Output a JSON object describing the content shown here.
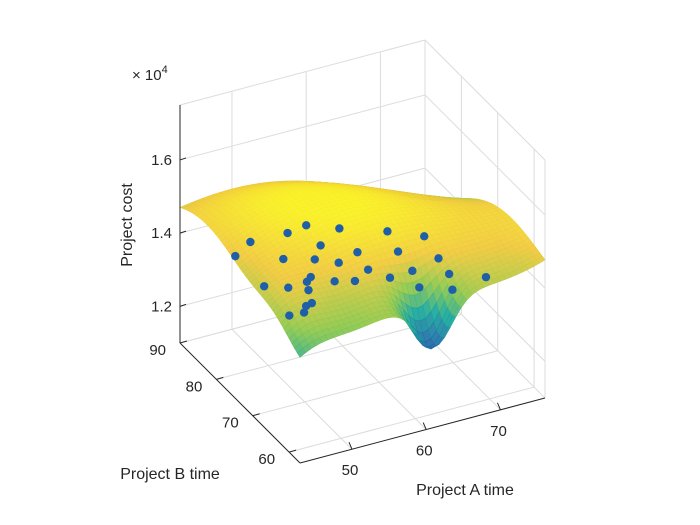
{
  "chart_data": {
    "type": "surface3d",
    "title": "",
    "xlabel": "Project A time",
    "ylabel": "Project B time",
    "zlabel": "Project cost",
    "z_exponent_label": "× 10",
    "z_exponent_power": "4",
    "x_ticks": [
      "50",
      "60",
      "70"
    ],
    "y_ticks": [
      "60",
      "70",
      "80",
      "90"
    ],
    "z_ticks": [
      "1.2",
      "1.4",
      "1.6"
    ],
    "x_tick_values": [
      50,
      60,
      70
    ],
    "y_tick_values": [
      60,
      70,
      80,
      90
    ],
    "z_tick_values": [
      12000,
      14000,
      16000
    ],
    "xlim": [
      43,
      76
    ],
    "ylim": [
      57,
      90
    ],
    "zlim": [
      11000,
      17500
    ],
    "grid": true,
    "colormap": [
      "#3a1f8f",
      "#1f6ea8",
      "#19a79b",
      "#8fc84a",
      "#f0c93a",
      "#f9f020"
    ],
    "scatter_color": "#1f5fa8",
    "points": [
      {
        "x": 44.5,
        "y": 63.0,
        "z": 14350
      },
      {
        "x": 46.0,
        "y": 62.0,
        "z": 14450
      },
      {
        "x": 47.5,
        "y": 64.5,
        "z": 14300
      },
      {
        "x": 49.0,
        "y": 66.0,
        "z": 14150
      },
      {
        "x": 46.5,
        "y": 74.0,
        "z": 13950
      },
      {
        "x": 49.5,
        "y": 73.5,
        "z": 13800
      },
      {
        "x": 51.0,
        "y": 71.0,
        "z": 13900
      },
      {
        "x": 52.5,
        "y": 74.5,
        "z": 13700
      },
      {
        "x": 54.0,
        "y": 76.5,
        "z": 13550
      },
      {
        "x": 55.5,
        "y": 73.0,
        "z": 13700
      },
      {
        "x": 56.5,
        "y": 80.5,
        "z": 13500
      },
      {
        "x": 57.5,
        "y": 71.5,
        "z": 13750
      },
      {
        "x": 58.5,
        "y": 78.0,
        "z": 13550
      },
      {
        "x": 59.0,
        "y": 84.0,
        "z": 13400
      },
      {
        "x": 60.5,
        "y": 74.0,
        "z": 13650
      },
      {
        "x": 61.0,
        "y": 69.0,
        "z": 13900
      },
      {
        "x": 62.0,
        "y": 80.0,
        "z": 13450
      },
      {
        "x": 62.5,
        "y": 64.0,
        "z": 14050
      },
      {
        "x": 63.0,
        "y": 87.0,
        "z": 13350
      },
      {
        "x": 64.5,
        "y": 70.0,
        "z": 13800
      },
      {
        "x": 65.0,
        "y": 60.0,
        "z": 14250
      },
      {
        "x": 66.0,
        "y": 77.0,
        "z": 13550
      },
      {
        "x": 67.5,
        "y": 66.0,
        "z": 13950
      },
      {
        "x": 68.0,
        "y": 84.0,
        "z": 13300
      },
      {
        "x": 69.0,
        "y": 72.0,
        "z": 13700
      },
      {
        "x": 70.5,
        "y": 62.0,
        "z": 14100
      },
      {
        "x": 71.0,
        "y": 80.0,
        "z": 13400
      },
      {
        "x": 48.0,
        "y": 85.0,
        "z": 13600
      },
      {
        "x": 51.5,
        "y": 88.0,
        "z": 13500
      },
      {
        "x": 53.0,
        "y": 82.0,
        "z": 13550
      },
      {
        "x": 57.0,
        "y": 89.0,
        "z": 13350
      },
      {
        "x": 60.0,
        "y": 90.0,
        "z": 13300
      }
    ]
  }
}
